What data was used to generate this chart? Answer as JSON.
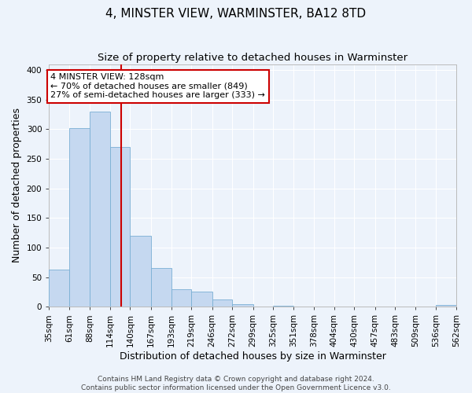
{
  "title": "4, MINSTER VIEW, WARMINSTER, BA12 8TD",
  "subtitle": "Size of property relative to detached houses in Warminster",
  "xlabel": "Distribution of detached houses by size in Warminster",
  "ylabel": "Number of detached properties",
  "bin_edges": [
    35,
    61,
    88,
    114,
    140,
    167,
    193,
    219,
    246,
    272,
    299,
    325,
    351,
    378,
    404,
    430,
    457,
    483,
    509,
    536,
    562
  ],
  "bin_heights": [
    63,
    302,
    330,
    270,
    120,
    65,
    29,
    25,
    13,
    4,
    0,
    2,
    0,
    0,
    0,
    0,
    0,
    0,
    0,
    3
  ],
  "bar_color": "#c5d8f0",
  "bar_edge_color": "#7aafd4",
  "property_size": 128,
  "vline_color": "#cc0000",
  "annotation_text": "4 MINSTER VIEW: 128sqm\n← 70% of detached houses are smaller (849)\n27% of semi-detached houses are larger (333) →",
  "annotation_box_color": "#ffffff",
  "annotation_box_edge_color": "#cc0000",
  "ylim": [
    0,
    410
  ],
  "xlim": [
    35,
    562
  ],
  "tick_labels": [
    "35sqm",
    "61sqm",
    "88sqm",
    "114sqm",
    "140sqm",
    "167sqm",
    "193sqm",
    "219sqm",
    "246sqm",
    "272sqm",
    "299sqm",
    "325sqm",
    "351sqm",
    "378sqm",
    "404sqm",
    "430sqm",
    "457sqm",
    "483sqm",
    "509sqm",
    "536sqm",
    "562sqm"
  ],
  "footer_text": "Contains HM Land Registry data © Crown copyright and database right 2024.\nContains public sector information licensed under the Open Government Licence v3.0.",
  "background_color": "#edf3fb",
  "grid_color": "#ffffff",
  "title_fontsize": 11,
  "subtitle_fontsize": 9.5,
  "axis_label_fontsize": 9,
  "tick_fontsize": 7.5,
  "footer_fontsize": 6.5,
  "annotation_fontsize": 8
}
